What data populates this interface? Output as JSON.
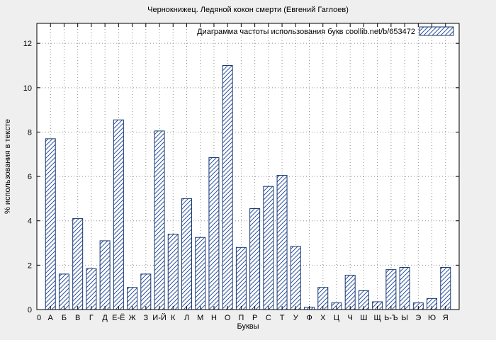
{
  "window": {
    "background": "#efefef"
  },
  "colors": {
    "plot_background": "#ffffff",
    "plot_border": "#000000",
    "grid": "#909090",
    "bar_outline": "#17386e",
    "bar_hatch": "#2f54a0",
    "text": "#000000"
  },
  "chart_data": {
    "type": "bar",
    "title": "Чернокнижец. Ледяной кокон смерти (Евгений Гаглоев)",
    "legend": "Диаграмма частоты использования букв coollib.net/b/653472",
    "legend_position": "top-right",
    "xlabel": "Буквы",
    "ylabel": "% использования в тексте",
    "grid": true,
    "ylim": [
      0,
      12.9
    ],
    "yticks": [
      0,
      2,
      4,
      6,
      8,
      10,
      12
    ],
    "x_origin_label": "0",
    "categories": [
      "А",
      "Б",
      "В",
      "Г",
      "Д",
      "Е-Ё",
      "Ж",
      "З",
      "И-Й",
      "К",
      "Л",
      "М",
      "Н",
      "О",
      "П",
      "Р",
      "С",
      "Т",
      "У",
      "Ф",
      "Х",
      "Ц",
      "Ч",
      "Ш",
      "Щ",
      "Ь-Ъ",
      "Ы",
      "Э",
      "Ю",
      "Я"
    ],
    "values": [
      7.7,
      1.6,
      4.1,
      1.85,
      3.1,
      8.55,
      1.0,
      1.6,
      8.05,
      3.4,
      5.0,
      3.25,
      6.85,
      11.0,
      2.8,
      4.55,
      5.55,
      6.05,
      2.85,
      0.1,
      1.0,
      0.3,
      1.55,
      0.85,
      0.35,
      1.8,
      1.9,
      0.3,
      0.5,
      1.9
    ]
  }
}
